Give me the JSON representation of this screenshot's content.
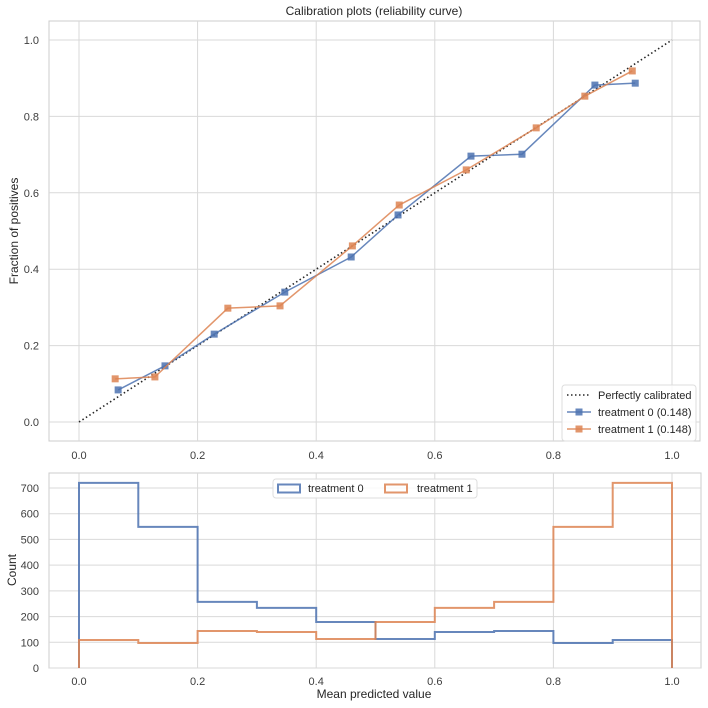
{
  "chart_data": [
    {
      "type": "line",
      "title": "Calibration plots  (reliability curve)",
      "xlabel": "",
      "ylabel": "Fraction of positives",
      "xlim": [
        -0.05,
        1.05
      ],
      "ylim": [
        -0.05,
        1.05
      ],
      "xticks": [
        "0.0",
        "0.2",
        "0.4",
        "0.6",
        "0.8",
        "1.0"
      ],
      "yticks": [
        "0.0",
        "0.2",
        "0.4",
        "0.6",
        "0.8",
        "1.0"
      ],
      "grid": true,
      "legend_position": "lower-right",
      "series": [
        {
          "name": "Perfectly calibrated",
          "style": "dotted",
          "color": "#262626",
          "x": [
            0,
            1
          ],
          "y": [
            0,
            1
          ]
        },
        {
          "name": "treatment 0 (0.148)",
          "style": "line-square",
          "color": "#4c72b0",
          "x": [
            0.066,
            0.145,
            0.228,
            0.347,
            0.459,
            0.538,
            0.661,
            0.747,
            0.87,
            0.938
          ],
          "y": [
            0.084,
            0.147,
            0.23,
            0.34,
            0.432,
            0.542,
            0.696,
            0.701,
            0.882,
            0.887
          ]
        },
        {
          "name": "treatment 1 (0.148)",
          "style": "line-square",
          "color": "#dd8452",
          "x": [
            0.061,
            0.128,
            0.251,
            0.339,
            0.461,
            0.54,
            0.653,
            0.771,
            0.853,
            0.933
          ],
          "y": [
            0.113,
            0.118,
            0.298,
            0.304,
            0.461,
            0.568,
            0.66,
            0.77,
            0.853,
            0.919
          ]
        }
      ]
    },
    {
      "type": "histogram-step",
      "title": "",
      "xlabel": "Mean predicted value",
      "ylabel": "Count",
      "xlim": [
        -0.05,
        1.05
      ],
      "ylim": [
        0,
        758
      ],
      "xticks": [
        "0.0",
        "0.2",
        "0.4",
        "0.6",
        "0.8",
        "1.0"
      ],
      "yticks": [
        "0",
        "100",
        "200",
        "300",
        "400",
        "500",
        "600",
        "700"
      ],
      "grid": true,
      "legend_position": "upper-center",
      "bin_edges": [
        0.0,
        0.1,
        0.2,
        0.3,
        0.4,
        0.5,
        0.6,
        0.7,
        0.8,
        0.9,
        1.0
      ],
      "series": [
        {
          "name": "treatment 0",
          "color": "#4c72b0",
          "values": [
            720,
            549,
            257,
            234,
            179,
            113,
            140,
            144,
            97,
            109
          ]
        },
        {
          "name": "treatment 1",
          "color": "#dd8452",
          "values": [
            109,
            97,
            144,
            140,
            113,
            179,
            234,
            257,
            549,
            720
          ]
        }
      ]
    }
  ]
}
